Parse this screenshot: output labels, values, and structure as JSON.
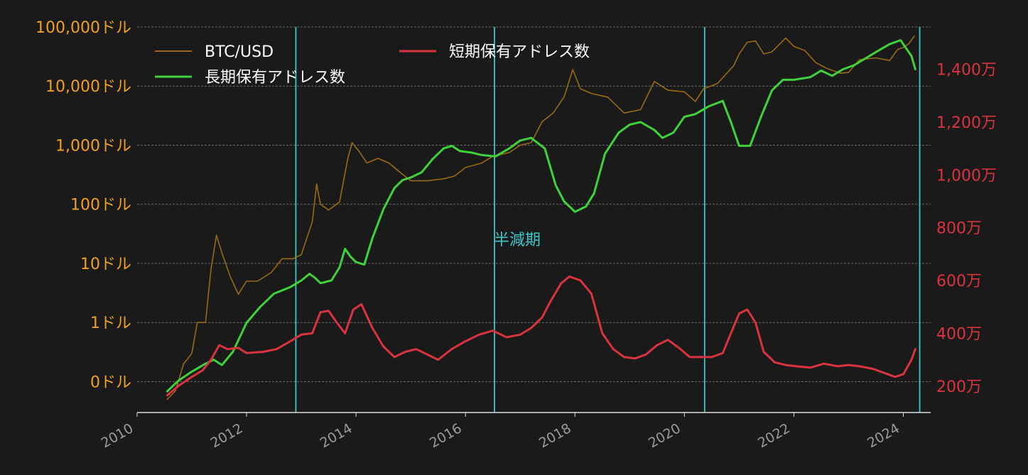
{
  "colors": {
    "background": "#1a1a1a",
    "btc": "#9a6a12",
    "long_term": "#3fd23a",
    "short_term": "#d9333f",
    "left_axis_text": "#f0a020",
    "right_axis_text": "#d9333f",
    "x_axis_text": "#9a9a9a",
    "halving": "#3cc6c8",
    "grid": "#9a9a9a",
    "legend_text": "#ffffff"
  },
  "chart_data": {
    "type": "line",
    "x_range": [
      2010.0,
      2024.5
    ],
    "x_ticks": [
      {
        "value": 2010,
        "label": "2010"
      },
      {
        "value": 2012,
        "label": "2012"
      },
      {
        "value": 2014,
        "label": "2014"
      },
      {
        "value": 2016,
        "label": "2016"
      },
      {
        "value": 2018,
        "label": "2018"
      },
      {
        "value": 2020,
        "label": "2020"
      },
      {
        "value": 2022,
        "label": "2022"
      },
      {
        "value": 2024,
        "label": "2024"
      }
    ],
    "y_left": {
      "scale": "log",
      "range": [
        0.03,
        100000
      ],
      "ticks": [
        {
          "value": 100000,
          "label": "100,000ドル"
        },
        {
          "value": 10000,
          "label": "10,000ドル"
        },
        {
          "value": 1000,
          "label": "1,000ドル"
        },
        {
          "value": 100,
          "label": "100ドル"
        },
        {
          "value": 10,
          "label": "10ドル"
        },
        {
          "value": 1,
          "label": "1ドル"
        },
        {
          "value": 0.1,
          "label": "0ドル"
        }
      ]
    },
    "y_right": {
      "scale": "linear",
      "range": [
        100,
        1560
      ],
      "unit": "万",
      "ticks": [
        {
          "value": 200,
          "label": "200万"
        },
        {
          "value": 400,
          "label": "400万"
        },
        {
          "value": 600,
          "label": "600万"
        },
        {
          "value": 800,
          "label": "800万"
        },
        {
          "value": 1000,
          "label": "1,000万"
        },
        {
          "value": 1200,
          "label": "1,200万"
        },
        {
          "value": 1400,
          "label": "1,400万"
        }
      ]
    },
    "grid": true,
    "legend_placement": "top-left",
    "series": [
      {
        "name": "BTC/USD",
        "axis": "left",
        "points": [
          [
            2010.55,
            0.05
          ],
          [
            2010.7,
            0.07
          ],
          [
            2010.85,
            0.2
          ],
          [
            2011.0,
            0.3
          ],
          [
            2011.1,
            1.0
          ],
          [
            2011.25,
            1.0
          ],
          [
            2011.35,
            8
          ],
          [
            2011.45,
            30
          ],
          [
            2011.55,
            15
          ],
          [
            2011.7,
            6
          ],
          [
            2011.85,
            3
          ],
          [
            2012.0,
            5
          ],
          [
            2012.2,
            5
          ],
          [
            2012.45,
            7
          ],
          [
            2012.65,
            12
          ],
          [
            2012.85,
            12
          ],
          [
            2013.0,
            14
          ],
          [
            2013.2,
            50
          ],
          [
            2013.28,
            220
          ],
          [
            2013.35,
            100
          ],
          [
            2013.5,
            80
          ],
          [
            2013.7,
            110
          ],
          [
            2013.85,
            600
          ],
          [
            2013.93,
            1100
          ],
          [
            2014.05,
            800
          ],
          [
            2014.2,
            500
          ],
          [
            2014.4,
            600
          ],
          [
            2014.6,
            500
          ],
          [
            2014.8,
            350
          ],
          [
            2015.0,
            250
          ],
          [
            2015.3,
            250
          ],
          [
            2015.6,
            270
          ],
          [
            2015.8,
            300
          ],
          [
            2016.0,
            420
          ],
          [
            2016.3,
            500
          ],
          [
            2016.5,
            650
          ],
          [
            2016.8,
            750
          ],
          [
            2017.0,
            1000
          ],
          [
            2017.2,
            1100
          ],
          [
            2017.4,
            2500
          ],
          [
            2017.6,
            3500
          ],
          [
            2017.8,
            6500
          ],
          [
            2017.96,
            19000
          ],
          [
            2018.1,
            9000
          ],
          [
            2018.3,
            7500
          ],
          [
            2018.6,
            6500
          ],
          [
            2018.9,
            3500
          ],
          [
            2019.2,
            4000
          ],
          [
            2019.45,
            12000
          ],
          [
            2019.7,
            8500
          ],
          [
            2020.0,
            8000
          ],
          [
            2020.2,
            5500
          ],
          [
            2020.35,
            9000
          ],
          [
            2020.6,
            11000
          ],
          [
            2020.9,
            22000
          ],
          [
            2021.0,
            35000
          ],
          [
            2021.15,
            55000
          ],
          [
            2021.3,
            58000
          ],
          [
            2021.45,
            35000
          ],
          [
            2021.6,
            38000
          ],
          [
            2021.85,
            65000
          ],
          [
            2022.0,
            47000
          ],
          [
            2022.2,
            40000
          ],
          [
            2022.4,
            25000
          ],
          [
            2022.6,
            20000
          ],
          [
            2022.85,
            16500
          ],
          [
            2023.0,
            17000
          ],
          [
            2023.2,
            28000
          ],
          [
            2023.5,
            30000
          ],
          [
            2023.75,
            27000
          ],
          [
            2023.9,
            42000
          ],
          [
            2024.0,
            45000
          ],
          [
            2024.1,
            52000
          ],
          [
            2024.2,
            70000
          ]
        ]
      },
      {
        "name": "長期保有アドレス数",
        "axis": "right",
        "points": [
          [
            2010.55,
            180
          ],
          [
            2010.75,
            220
          ],
          [
            2011.0,
            255
          ],
          [
            2011.25,
            285
          ],
          [
            2011.4,
            300
          ],
          [
            2011.55,
            280
          ],
          [
            2011.75,
            330
          ],
          [
            2012.0,
            440
          ],
          [
            2012.25,
            500
          ],
          [
            2012.5,
            550
          ],
          [
            2012.8,
            575
          ],
          [
            2013.0,
            600
          ],
          [
            2013.15,
            625
          ],
          [
            2013.25,
            610
          ],
          [
            2013.35,
            590
          ],
          [
            2013.55,
            600
          ],
          [
            2013.7,
            650
          ],
          [
            2013.8,
            720
          ],
          [
            2013.9,
            690
          ],
          [
            2014.0,
            670
          ],
          [
            2014.15,
            660
          ],
          [
            2014.3,
            760
          ],
          [
            2014.5,
            870
          ],
          [
            2014.7,
            950
          ],
          [
            2014.85,
            980
          ],
          [
            2015.0,
            990
          ],
          [
            2015.2,
            1010
          ],
          [
            2015.4,
            1060
          ],
          [
            2015.6,
            1100
          ],
          [
            2015.75,
            1110
          ],
          [
            2015.9,
            1090
          ],
          [
            2016.1,
            1085
          ],
          [
            2016.3,
            1075
          ],
          [
            2016.55,
            1070
          ],
          [
            2016.8,
            1100
          ],
          [
            2017.0,
            1130
          ],
          [
            2017.2,
            1140
          ],
          [
            2017.45,
            1100
          ],
          [
            2017.65,
            960
          ],
          [
            2017.8,
            900
          ],
          [
            2018.0,
            860
          ],
          [
            2018.2,
            880
          ],
          [
            2018.35,
            930
          ],
          [
            2018.55,
            1080
          ],
          [
            2018.8,
            1160
          ],
          [
            2019.0,
            1190
          ],
          [
            2019.2,
            1200
          ],
          [
            2019.45,
            1170
          ],
          [
            2019.6,
            1140
          ],
          [
            2019.8,
            1160
          ],
          [
            2020.0,
            1220
          ],
          [
            2020.2,
            1230
          ],
          [
            2020.45,
            1260
          ],
          [
            2020.7,
            1280
          ],
          [
            2020.85,
            1200
          ],
          [
            2021.0,
            1110
          ],
          [
            2021.2,
            1110
          ],
          [
            2021.4,
            1220
          ],
          [
            2021.6,
            1320
          ],
          [
            2021.8,
            1360
          ],
          [
            2022.0,
            1360
          ],
          [
            2022.3,
            1370
          ],
          [
            2022.5,
            1395
          ],
          [
            2022.7,
            1375
          ],
          [
            2022.9,
            1400
          ],
          [
            2023.1,
            1415
          ],
          [
            2023.3,
            1440
          ],
          [
            2023.5,
            1465
          ],
          [
            2023.75,
            1495
          ],
          [
            2023.95,
            1510
          ],
          [
            2024.05,
            1480
          ],
          [
            2024.15,
            1450
          ],
          [
            2024.22,
            1400
          ]
        ]
      },
      {
        "name": "短期保有アドレス数",
        "axis": "right",
        "points": [
          [
            2010.55,
            165
          ],
          [
            2010.75,
            200
          ],
          [
            2011.0,
            235
          ],
          [
            2011.2,
            260
          ],
          [
            2011.35,
            300
          ],
          [
            2011.5,
            355
          ],
          [
            2011.65,
            340
          ],
          [
            2011.85,
            345
          ],
          [
            2012.0,
            325
          ],
          [
            2012.3,
            330
          ],
          [
            2012.55,
            340
          ],
          [
            2012.8,
            370
          ],
          [
            2013.0,
            395
          ],
          [
            2013.2,
            400
          ],
          [
            2013.35,
            480
          ],
          [
            2013.5,
            485
          ],
          [
            2013.65,
            440
          ],
          [
            2013.8,
            400
          ],
          [
            2013.95,
            490
          ],
          [
            2014.1,
            510
          ],
          [
            2014.3,
            420
          ],
          [
            2014.5,
            350
          ],
          [
            2014.7,
            310
          ],
          [
            2014.9,
            330
          ],
          [
            2015.1,
            340
          ],
          [
            2015.3,
            320
          ],
          [
            2015.5,
            300
          ],
          [
            2015.75,
            340
          ],
          [
            2016.0,
            370
          ],
          [
            2016.25,
            395
          ],
          [
            2016.5,
            410
          ],
          [
            2016.75,
            385
          ],
          [
            2017.0,
            395
          ],
          [
            2017.2,
            420
          ],
          [
            2017.4,
            460
          ],
          [
            2017.55,
            520
          ],
          [
            2017.75,
            590
          ],
          [
            2017.9,
            615
          ],
          [
            2018.1,
            600
          ],
          [
            2018.3,
            550
          ],
          [
            2018.5,
            400
          ],
          [
            2018.7,
            340
          ],
          [
            2018.9,
            310
          ],
          [
            2019.1,
            305
          ],
          [
            2019.3,
            320
          ],
          [
            2019.5,
            355
          ],
          [
            2019.7,
            375
          ],
          [
            2019.9,
            345
          ],
          [
            2020.1,
            310
          ],
          [
            2020.3,
            310
          ],
          [
            2020.5,
            310
          ],
          [
            2020.7,
            325
          ],
          [
            2020.85,
            400
          ],
          [
            2021.0,
            475
          ],
          [
            2021.15,
            490
          ],
          [
            2021.3,
            440
          ],
          [
            2021.45,
            330
          ],
          [
            2021.65,
            290
          ],
          [
            2021.85,
            280
          ],
          [
            2022.05,
            275
          ],
          [
            2022.3,
            270
          ],
          [
            2022.55,
            285
          ],
          [
            2022.8,
            275
          ],
          [
            2023.0,
            280
          ],
          [
            2023.2,
            275
          ],
          [
            2023.45,
            265
          ],
          [
            2023.65,
            250
          ],
          [
            2023.85,
            235
          ],
          [
            2024.0,
            245
          ],
          [
            2024.15,
            300
          ],
          [
            2024.22,
            340
          ]
        ]
      }
    ],
    "halvings": [
      2012.9,
      2016.53,
      2020.37,
      2024.3
    ],
    "annotation": "半減期"
  }
}
